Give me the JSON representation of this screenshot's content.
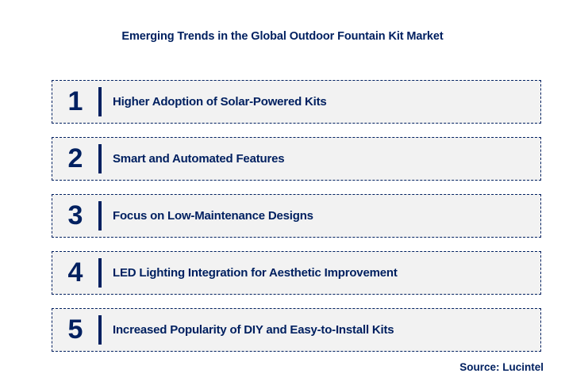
{
  "title": "Emerging Trends in the Global Outdoor Fountain Kit Market",
  "source": "Source: Lucintel",
  "colors": {
    "navy": "#002060",
    "box_background": "#F2F2F2",
    "page_background": "#FFFFFF"
  },
  "trends": [
    {
      "number": "1",
      "label": "Higher Adoption of Solar-Powered Kits"
    },
    {
      "number": "2",
      "label": "Smart and Automated Features"
    },
    {
      "number": "3",
      "label": "Focus on Low-Maintenance Designs"
    },
    {
      "number": "4",
      "label": "LED Lighting Integration for Aesthetic Improvement"
    },
    {
      "number": "5",
      "label": "Increased Popularity of DIY and Easy-to-Install Kits"
    }
  ]
}
